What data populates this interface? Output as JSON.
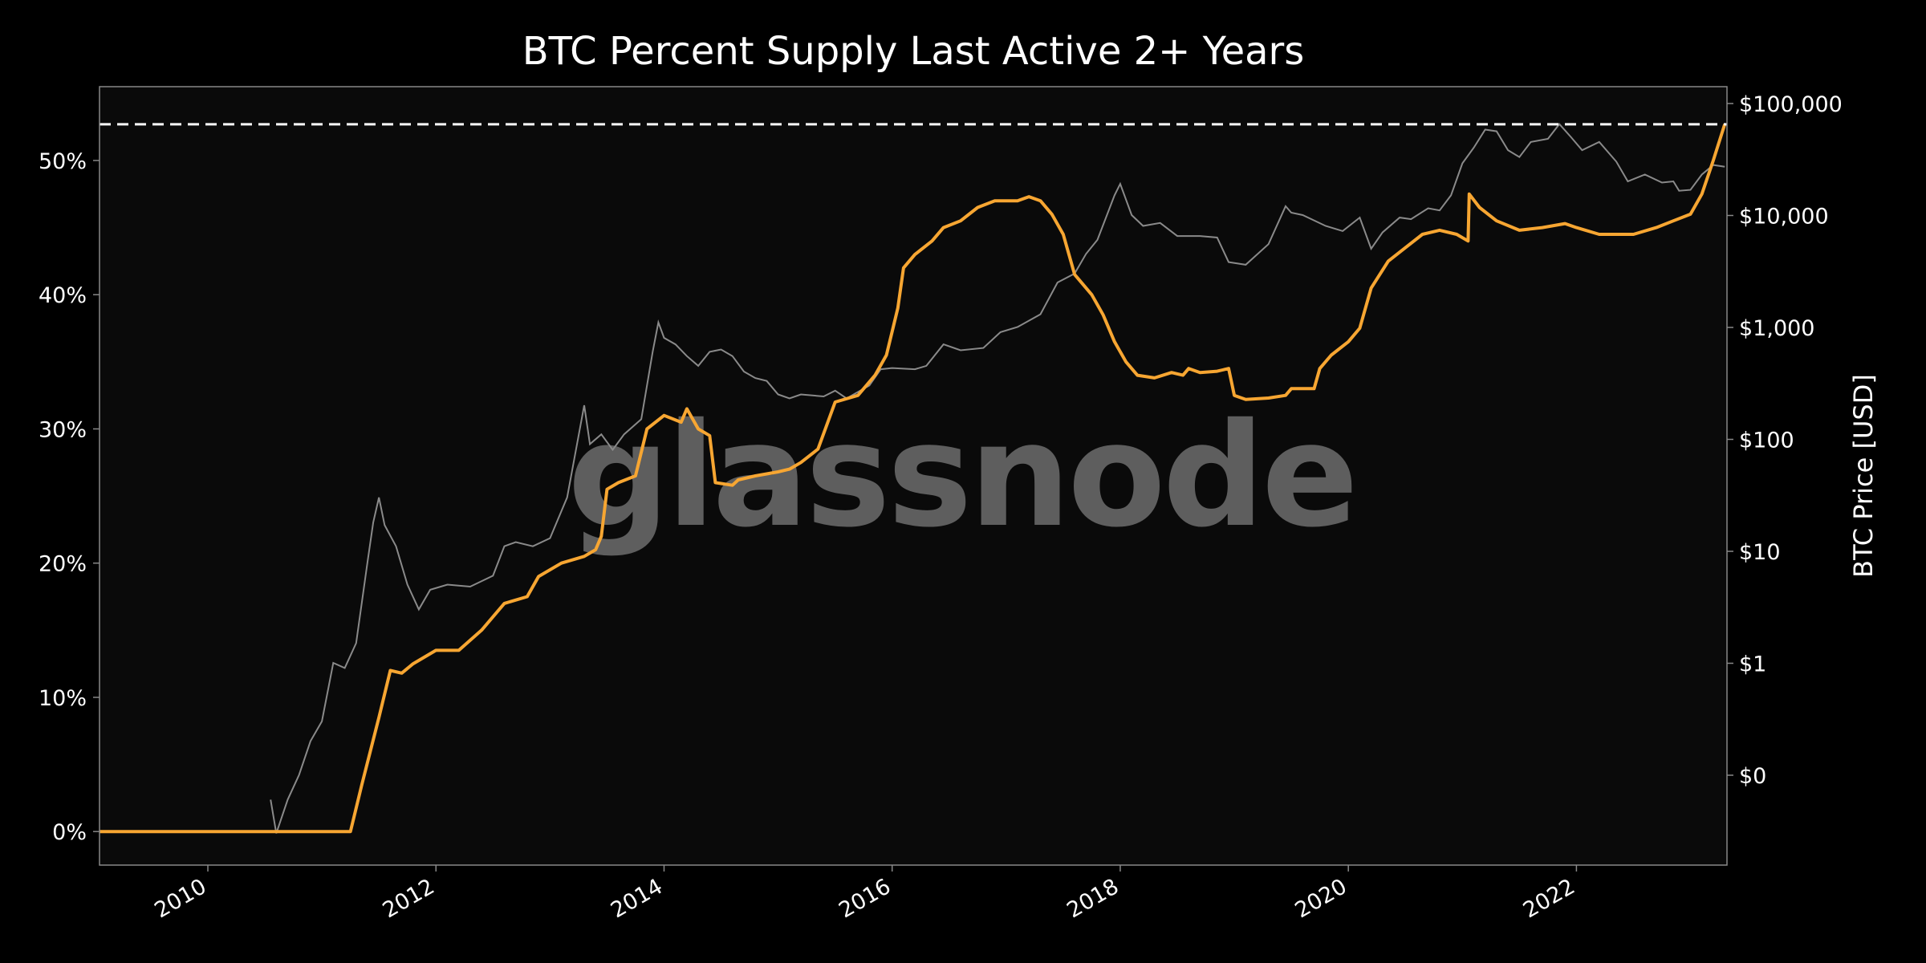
{
  "chart_data": {
    "type": "line",
    "title": "BTC Percent Supply Last Active 2+ Years",
    "watermark": "glassnode",
    "xlabel": "",
    "x_ticks": [
      "2010",
      "2012",
      "2014",
      "2016",
      "2018",
      "2020",
      "2022"
    ],
    "xlim": [
      2009.05,
      2023.32
    ],
    "y_left": {
      "label": "",
      "ticks": [
        "0%",
        "10%",
        "20%",
        "30%",
        "40%",
        "50%"
      ],
      "lim": [
        -2.5,
        55.5
      ]
    },
    "y_right": {
      "label": "BTC Price [USD]",
      "scale": "log",
      "ticks": [
        "$0",
        "$1",
        "$10",
        "$100",
        "$1,000",
        "$10,000",
        "$100,000"
      ]
    },
    "reference_line": {
      "value": 52.7,
      "style": "dashed",
      "color": "#ffffff"
    },
    "colors": {
      "background": "#0a0a0a",
      "supply": "#f7a632",
      "price": "#8a8a8a",
      "frame": "#888888"
    },
    "series": [
      {
        "axis": "left",
        "color": "#f7a632",
        "points": [
          [
            2009.05,
            0
          ],
          [
            2011.25,
            0
          ],
          [
            2011.35,
            3.5
          ],
          [
            2011.5,
            8.5
          ],
          [
            2011.6,
            12
          ],
          [
            2011.7,
            11.8
          ],
          [
            2011.8,
            12.5
          ],
          [
            2012.0,
            13.5
          ],
          [
            2012.2,
            13.5
          ],
          [
            2012.4,
            15
          ],
          [
            2012.6,
            17
          ],
          [
            2012.8,
            17.5
          ],
          [
            2012.9,
            19
          ],
          [
            2013.1,
            20
          ],
          [
            2013.3,
            20.5
          ],
          [
            2013.4,
            21
          ],
          [
            2013.45,
            22
          ],
          [
            2013.5,
            25.5
          ],
          [
            2013.6,
            26
          ],
          [
            2013.75,
            26.5
          ],
          [
            2013.85,
            30
          ],
          [
            2014.0,
            31
          ],
          [
            2014.15,
            30.5
          ],
          [
            2014.2,
            31.5
          ],
          [
            2014.3,
            30
          ],
          [
            2014.4,
            29.5
          ],
          [
            2014.45,
            26
          ],
          [
            2014.6,
            25.8
          ],
          [
            2014.65,
            26.2
          ],
          [
            2014.8,
            26.5
          ],
          [
            2015.0,
            26.8
          ],
          [
            2015.1,
            27
          ],
          [
            2015.2,
            27.5
          ],
          [
            2015.35,
            28.5
          ],
          [
            2015.5,
            32
          ],
          [
            2015.7,
            32.5
          ],
          [
            2015.85,
            34
          ],
          [
            2015.95,
            35.5
          ],
          [
            2016.05,
            39
          ],
          [
            2016.1,
            42
          ],
          [
            2016.2,
            43
          ],
          [
            2016.35,
            44
          ],
          [
            2016.45,
            45
          ],
          [
            2016.6,
            45.5
          ],
          [
            2016.75,
            46.5
          ],
          [
            2016.9,
            47
          ],
          [
            2017.1,
            47
          ],
          [
            2017.2,
            47.3
          ],
          [
            2017.3,
            47
          ],
          [
            2017.4,
            46
          ],
          [
            2017.5,
            44.5
          ],
          [
            2017.55,
            43
          ],
          [
            2017.6,
            41.5
          ],
          [
            2017.75,
            40
          ],
          [
            2017.85,
            38.5
          ],
          [
            2017.95,
            36.5
          ],
          [
            2018.05,
            35
          ],
          [
            2018.15,
            34
          ],
          [
            2018.3,
            33.8
          ],
          [
            2018.45,
            34.2
          ],
          [
            2018.55,
            34
          ],
          [
            2018.6,
            34.5
          ],
          [
            2018.7,
            34.2
          ],
          [
            2018.85,
            34.3
          ],
          [
            2018.95,
            34.5
          ],
          [
            2019.0,
            32.5
          ],
          [
            2019.1,
            32.2
          ],
          [
            2019.3,
            32.3
          ],
          [
            2019.45,
            32.5
          ],
          [
            2019.5,
            33
          ],
          [
            2019.7,
            33
          ],
          [
            2019.75,
            34.5
          ],
          [
            2019.85,
            35.5
          ],
          [
            2020.0,
            36.5
          ],
          [
            2020.1,
            37.5
          ],
          [
            2020.2,
            40.5
          ],
          [
            2020.35,
            42.5
          ],
          [
            2020.5,
            43.5
          ],
          [
            2020.65,
            44.5
          ],
          [
            2020.8,
            44.8
          ],
          [
            2020.95,
            44.5
          ],
          [
            2021.05,
            44
          ],
          [
            2021.06,
            47.5
          ],
          [
            2021.15,
            46.5
          ],
          [
            2021.3,
            45.5
          ],
          [
            2021.5,
            44.8
          ],
          [
            2021.7,
            45
          ],
          [
            2021.9,
            45.3
          ],
          [
            2022.0,
            45
          ],
          [
            2022.2,
            44.5
          ],
          [
            2022.5,
            44.5
          ],
          [
            2022.7,
            45
          ],
          [
            2022.85,
            45.5
          ],
          [
            2023.0,
            46
          ],
          [
            2023.1,
            47.5
          ],
          [
            2023.2,
            50
          ],
          [
            2023.3,
            52.7
          ]
        ]
      },
      {
        "axis": "right",
        "color": "#8a8a8a",
        "points": [
          [
            2010.55,
            0.06
          ],
          [
            2010.6,
            0.03
          ],
          [
            2010.7,
            0.06
          ],
          [
            2010.8,
            0.1
          ],
          [
            2010.9,
            0.2
          ],
          [
            2011.0,
            0.3
          ],
          [
            2011.1,
            1
          ],
          [
            2011.2,
            0.9
          ],
          [
            2011.3,
            1.5
          ],
          [
            2011.4,
            8
          ],
          [
            2011.45,
            18
          ],
          [
            2011.5,
            30
          ],
          [
            2011.55,
            17
          ],
          [
            2011.65,
            11
          ],
          [
            2011.75,
            5
          ],
          [
            2011.85,
            3
          ],
          [
            2011.95,
            4.5
          ],
          [
            2012.1,
            5
          ],
          [
            2012.3,
            4.8
          ],
          [
            2012.5,
            6
          ],
          [
            2012.6,
            11
          ],
          [
            2012.7,
            12
          ],
          [
            2012.85,
            11
          ],
          [
            2013.0,
            13
          ],
          [
            2013.15,
            30
          ],
          [
            2013.3,
            200
          ],
          [
            2013.35,
            90
          ],
          [
            2013.45,
            110
          ],
          [
            2013.55,
            80
          ],
          [
            2013.65,
            110
          ],
          [
            2013.8,
            150
          ],
          [
            2013.9,
            600
          ],
          [
            2013.95,
            1100
          ],
          [
            2014.0,
            800
          ],
          [
            2014.1,
            700
          ],
          [
            2014.2,
            550
          ],
          [
            2014.3,
            450
          ],
          [
            2014.4,
            600
          ],
          [
            2014.5,
            630
          ],
          [
            2014.6,
            550
          ],
          [
            2014.7,
            400
          ],
          [
            2014.8,
            350
          ],
          [
            2014.9,
            330
          ],
          [
            2015.0,
            250
          ],
          [
            2015.1,
            230
          ],
          [
            2015.2,
            250
          ],
          [
            2015.4,
            240
          ],
          [
            2015.5,
            270
          ],
          [
            2015.6,
            230
          ],
          [
            2015.8,
            300
          ],
          [
            2015.9,
            420
          ],
          [
            2016.0,
            430
          ],
          [
            2016.2,
            420
          ],
          [
            2016.3,
            450
          ],
          [
            2016.45,
            700
          ],
          [
            2016.6,
            620
          ],
          [
            2016.8,
            650
          ],
          [
            2016.95,
            900
          ],
          [
            2017.1,
            1000
          ],
          [
            2017.3,
            1300
          ],
          [
            2017.45,
            2500
          ],
          [
            2017.6,
            3000
          ],
          [
            2017.7,
            4500
          ],
          [
            2017.8,
            6000
          ],
          [
            2017.95,
            15000
          ],
          [
            2018.0,
            19000
          ],
          [
            2018.1,
            10000
          ],
          [
            2018.2,
            8000
          ],
          [
            2018.35,
            8500
          ],
          [
            2018.5,
            6500
          ],
          [
            2018.7,
            6500
          ],
          [
            2018.85,
            6300
          ],
          [
            2018.95,
            3800
          ],
          [
            2019.1,
            3600
          ],
          [
            2019.3,
            5500
          ],
          [
            2019.45,
            12000
          ],
          [
            2019.5,
            10500
          ],
          [
            2019.6,
            10000
          ],
          [
            2019.8,
            8000
          ],
          [
            2019.95,
            7200
          ],
          [
            2020.1,
            9500
          ],
          [
            2020.2,
            5000
          ],
          [
            2020.3,
            7000
          ],
          [
            2020.45,
            9500
          ],
          [
            2020.55,
            9200
          ],
          [
            2020.7,
            11500
          ],
          [
            2020.8,
            11000
          ],
          [
            2020.9,
            15000
          ],
          [
            2021.0,
            29000
          ],
          [
            2021.1,
            40000
          ],
          [
            2021.2,
            58000
          ],
          [
            2021.3,
            56000
          ],
          [
            2021.4,
            38000
          ],
          [
            2021.5,
            33000
          ],
          [
            2021.6,
            45000
          ],
          [
            2021.75,
            48000
          ],
          [
            2021.85,
            65000
          ],
          [
            2021.95,
            50000
          ],
          [
            2022.05,
            38000
          ],
          [
            2022.2,
            45000
          ],
          [
            2022.35,
            30000
          ],
          [
            2022.45,
            20000
          ],
          [
            2022.6,
            23000
          ],
          [
            2022.75,
            19500
          ],
          [
            2022.85,
            20000
          ],
          [
            2022.9,
            16500
          ],
          [
            2023.0,
            16800
          ],
          [
            2023.1,
            23000
          ],
          [
            2023.2,
            28000
          ],
          [
            2023.3,
            27000
          ]
        ]
      }
    ]
  }
}
